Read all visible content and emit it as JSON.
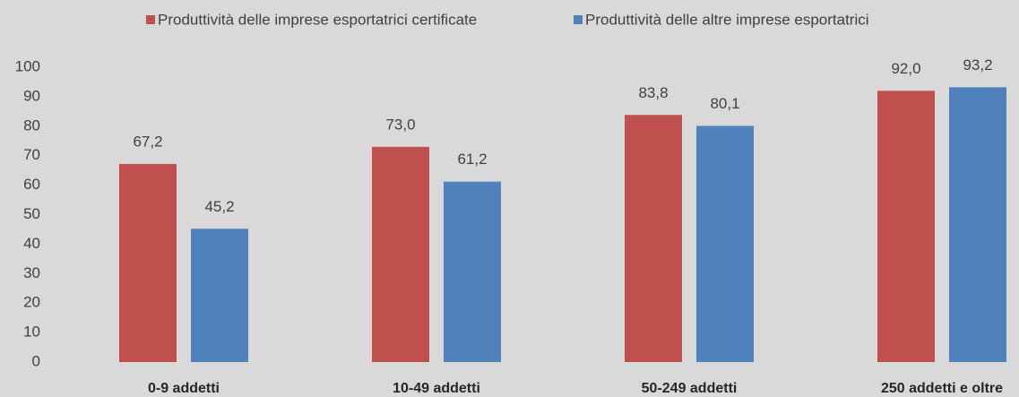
{
  "chart_data": {
    "type": "bar",
    "categories": [
      "0-9 addetti",
      "10-49 addetti",
      "50-249 addetti",
      "250 addetti e oltre"
    ],
    "series": [
      {
        "name": "Produttività delle imprese esportatrici certificate",
        "color": "#c0504d",
        "values": [
          67.2,
          73.0,
          83.8,
          92.0
        ],
        "value_labels": [
          "67,2",
          "73,0",
          "83,8",
          "92,0"
        ]
      },
      {
        "name": "Produttività delle altre imprese esportatrici",
        "color": "#4f81bd",
        "values": [
          45.2,
          61.2,
          80.1,
          93.2
        ],
        "value_labels": [
          "45,2",
          "61,2",
          "80,1",
          "93,2"
        ]
      }
    ],
    "ylim": [
      0,
      100
    ],
    "yticks": [
      0,
      10,
      20,
      30,
      40,
      50,
      60,
      70,
      80,
      90,
      100
    ],
    "grid": false,
    "legend": "top"
  }
}
